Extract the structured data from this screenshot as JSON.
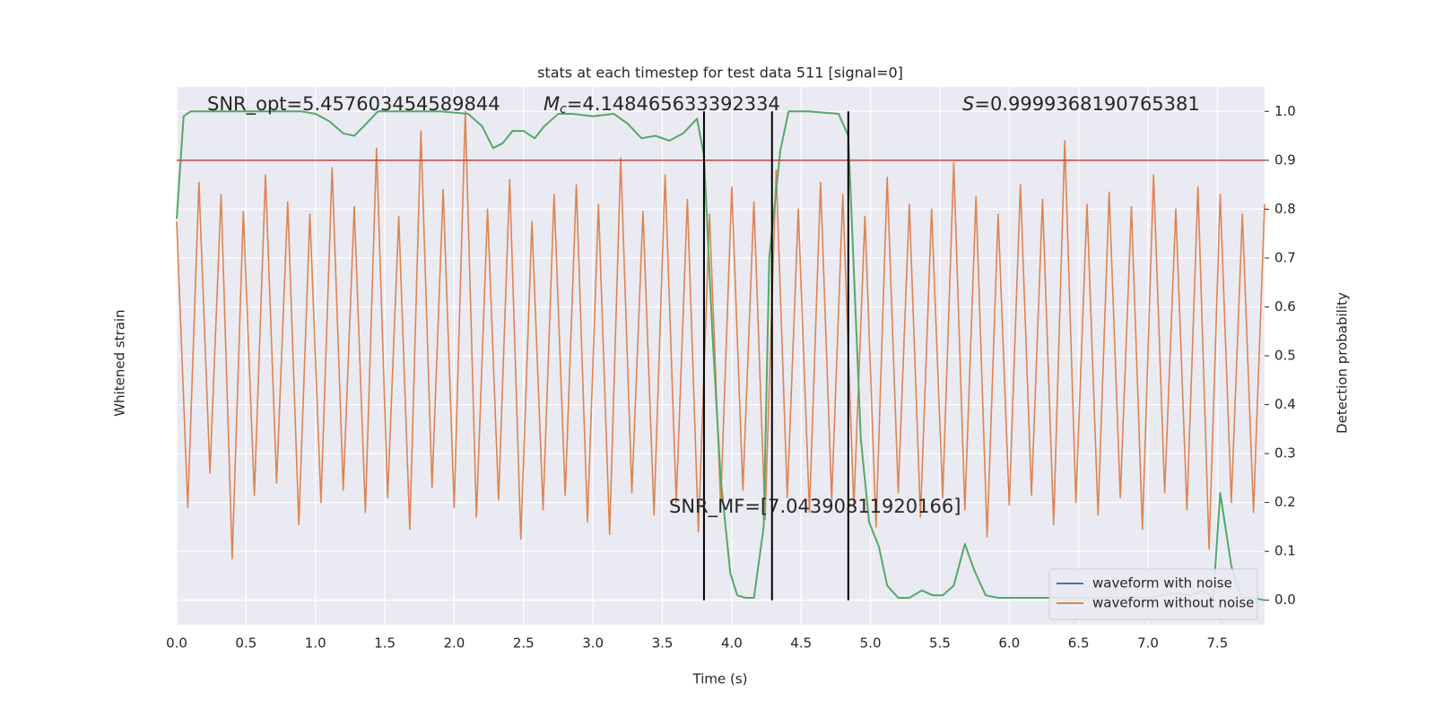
{
  "chart_data": {
    "type": "line",
    "title": "stats at each timestep for test data 511 [signal=0]",
    "x_label": "Time (s)",
    "y_label": "Whitened strain",
    "y2_label": "Detection probability",
    "xlim": [
      0,
      7.84
    ],
    "xticks": [
      {
        "value": 0,
        "label": "0.0"
      },
      0.5,
      {
        "value": 1,
        "label": "1.0"
      },
      1.5,
      {
        "value": 2,
        "label": "2.0"
      },
      2.5,
      {
        "value": 3,
        "label": "3.0"
      },
      3.5,
      {
        "value": 4,
        "label": "4.0"
      },
      4.5,
      {
        "value": 5,
        "label": "5.0"
      },
      5.5,
      {
        "value": 6,
        "label": "6.0"
      },
      6.5,
      {
        "value": 7,
        "label": "7.0"
      },
      7.5
    ],
    "ylim": [
      -1.1,
      1.1
    ],
    "y2lim": [
      -0.05,
      1.05
    ],
    "y2ticks": [
      {
        "value": 0,
        "label": "0.0"
      },
      0.1,
      0.2,
      0.3,
      0.4,
      0.5,
      0.6,
      0.7,
      0.8,
      0.9,
      {
        "value": 1,
        "label": "1.0"
      }
    ],
    "grid": true,
    "legend": "lower right",
    "series": [
      {
        "name": "waveform with noise",
        "color": "#4c72b0"
      },
      {
        "name": "waveform without noise",
        "color": "#dd8452",
        "x": [
          0,
          0.08,
          0.16,
          0.24,
          0.32,
          0.4,
          0.48,
          0.56,
          0.64,
          0.72,
          0.8,
          0.88,
          0.96,
          1.04,
          1.12,
          1.2,
          1.28,
          1.36,
          1.44,
          1.52,
          1.6,
          1.68,
          1.76,
          1.84,
          1.92,
          2,
          2.08,
          2.16,
          2.24,
          2.32,
          2.4,
          2.48,
          2.56,
          2.64,
          2.72,
          2.8,
          2.88,
          2.96,
          3.04,
          3.12,
          3.2,
          3.28,
          3.36,
          3.44,
          3.52,
          3.6,
          3.68,
          3.76,
          3.84,
          3.92,
          4,
          4.08,
          4.16,
          4.24,
          4.32,
          4.4,
          4.48,
          4.56,
          4.64,
          4.72,
          4.8,
          4.88,
          4.96,
          5.04,
          5.12,
          5.2,
          5.28,
          5.36,
          5.44,
          5.52,
          5.6,
          5.68,
          5.76,
          5.84,
          5.92,
          6,
          6.08,
          6.16,
          6.24,
          6.32,
          6.4,
          6.48,
          6.56,
          6.64,
          6.72,
          6.8,
          6.88,
          6.96,
          7.04,
          7.12,
          7.2,
          7.28,
          7.36,
          7.44,
          7.52,
          7.6,
          7.68,
          7.76,
          7.84
        ],
        "values": [
          0.55,
          -0.62,
          0.71,
          -0.48,
          0.66,
          -0.83,
          0.59,
          -0.57,
          0.74,
          -0.52,
          0.63,
          -0.69,
          0.58,
          -0.6,
          0.77,
          -0.55,
          0.61,
          -0.64,
          0.85,
          -0.58,
          0.57,
          -0.71,
          0.92,
          -0.54,
          0.68,
          -0.62,
          1.0,
          -0.66,
          0.6,
          -0.59,
          0.72,
          -0.75,
          0.55,
          -0.63,
          0.66,
          -0.57,
          0.7,
          -0.68,
          0.62,
          -0.73,
          0.81,
          -0.56,
          0.59,
          -0.65,
          0.74,
          -0.6,
          0.64,
          -0.72,
          0.58,
          -0.61,
          0.69,
          -0.55,
          0.63,
          -0.67,
          0.76,
          -0.58,
          0.6,
          -0.64,
          0.71,
          -0.59,
          0.66,
          -0.62,
          0.57,
          -0.7,
          0.73,
          -0.56,
          0.62,
          -0.66,
          0.6,
          -0.58,
          0.79,
          -0.63,
          0.65,
          -0.74,
          0.58,
          -0.61,
          0.7,
          -0.57,
          0.64,
          -0.69,
          0.88,
          -0.6,
          0.62,
          -0.65,
          0.67,
          -0.58,
          0.61,
          -0.71,
          0.74,
          -0.56,
          0.6,
          -0.63,
          0.69,
          -0.79,
          0.66,
          -0.6,
          0.58,
          -0.64,
          0.62
        ]
      },
      {
        "name": "Detection probability",
        "color": "#55a868",
        "axis": "y2",
        "x": [
          0,
          0.05,
          0.1,
          0.3,
          0.6,
          0.9,
          1.0,
          1.1,
          1.2,
          1.28,
          1.35,
          1.45,
          1.6,
          1.9,
          2.1,
          2.2,
          2.28,
          2.35,
          2.42,
          2.5,
          2.58,
          2.65,
          2.75,
          2.85,
          3.0,
          3.15,
          3.25,
          3.35,
          3.45,
          3.55,
          3.65,
          3.75,
          3.8,
          3.86,
          3.92,
          3.99,
          4.04,
          4.1,
          4.16,
          4.23,
          4.27,
          4.35,
          4.41,
          4.55,
          4.77,
          4.84,
          4.93,
          4.99,
          5.06,
          5.12,
          5.2,
          5.28,
          5.37,
          5.45,
          5.52,
          5.6,
          5.68,
          5.75,
          5.83,
          5.92,
          6.1,
          6.5,
          7.0,
          7.2,
          7.3,
          7.4,
          7.47,
          7.52,
          7.6,
          7.67,
          7.75,
          7.84
        ],
        "values": [
          0.78,
          0.99,
          1.0,
          1.0,
          1.0,
          1.0,
          0.995,
          0.98,
          0.955,
          0.95,
          0.97,
          1.0,
          1.0,
          1.0,
          0.995,
          0.97,
          0.925,
          0.935,
          0.96,
          0.96,
          0.945,
          0.97,
          0.995,
          0.995,
          0.99,
          0.995,
          0.975,
          0.945,
          0.95,
          0.94,
          0.955,
          0.985,
          0.91,
          0.55,
          0.25,
          0.055,
          0.01,
          0.005,
          0.005,
          0.15,
          0.7,
          0.92,
          1.0,
          1.0,
          0.995,
          0.95,
          0.33,
          0.16,
          0.11,
          0.03,
          0.005,
          0.005,
          0.02,
          0.01,
          0.01,
          0.03,
          0.115,
          0.06,
          0.01,
          0.005,
          0.005,
          0.005,
          0.005,
          0.015,
          0.01,
          0.02,
          0.005,
          0.22,
          0.07,
          0.005,
          0.005,
          0.0
        ]
      }
    ],
    "hline": 0.9,
    "hline_color": "#c44e52",
    "vlines": [
      3.8,
      4.29,
      4.84
    ],
    "vline_color": "#000000",
    "annotations": {
      "snr_opt": "SNR_opt=5.457603454589844",
      "chirp_mass": {
        "symbol": "M",
        "subscript": "c",
        "text": "=4.148465633392334"
      },
      "score": {
        "symbol": "S",
        "text": "=0.9999368190765381"
      },
      "snr_mf": "SNR_MF=[7.04390811920166]"
    }
  }
}
